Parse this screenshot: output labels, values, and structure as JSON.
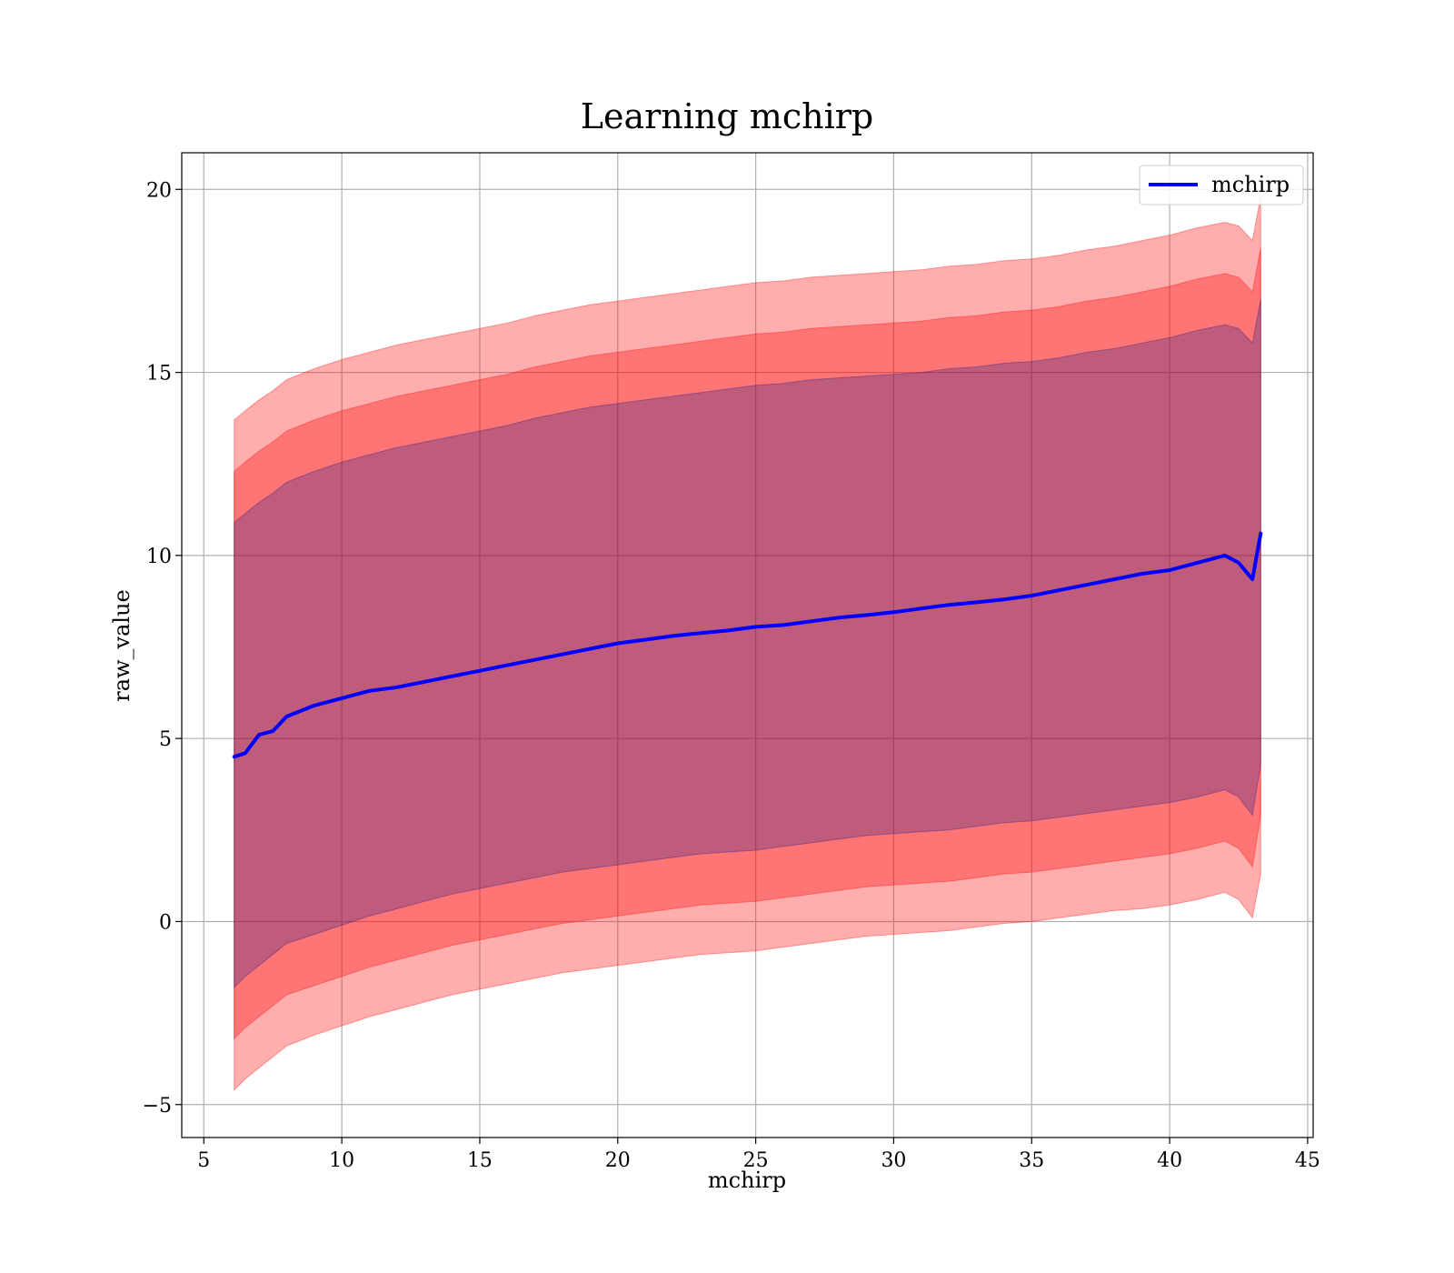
{
  "chart_data": {
    "type": "line",
    "title": "Learning mchirp",
    "xlabel": "mchirp",
    "ylabel": "raw_value",
    "xlim": [
      4.2,
      45.2
    ],
    "ylim": [
      -5.9,
      21
    ],
    "xticks": [
      5,
      10,
      15,
      20,
      25,
      30,
      35,
      40,
      45
    ],
    "yticks": [
      -5,
      0,
      5,
      10,
      15,
      20
    ],
    "ytick_labels": [
      "−5",
      "0",
      "5",
      "10",
      "15",
      "20"
    ],
    "grid": true,
    "legend_position": "top-right",
    "x": [
      6.1,
      6.5,
      7.0,
      7.5,
      8.0,
      9.0,
      10.0,
      11.0,
      12.0,
      13.0,
      14.0,
      15.0,
      16.0,
      17.0,
      18.0,
      19.0,
      20.0,
      21.0,
      22.0,
      23.0,
      24.0,
      25.0,
      26.0,
      27.0,
      28.0,
      29.0,
      30.0,
      31.0,
      32.0,
      33.0,
      34.0,
      35.0,
      36.0,
      37.0,
      38.0,
      39.0,
      40.0,
      41.0,
      42.0,
      42.5,
      43.0,
      43.3
    ],
    "series": [
      {
        "name": "mchirp",
        "color": "#0000ff",
        "values": [
          4.5,
          4.6,
          5.1,
          5.2,
          5.6,
          5.9,
          6.1,
          6.3,
          6.4,
          6.55,
          6.7,
          6.85,
          7.0,
          7.15,
          7.3,
          7.45,
          7.6,
          7.7,
          7.8,
          7.88,
          7.95,
          8.05,
          8.1,
          8.2,
          8.3,
          8.37,
          8.45,
          8.55,
          8.65,
          8.72,
          8.8,
          8.9,
          9.05,
          9.2,
          9.35,
          9.5,
          9.6,
          9.8,
          10.0,
          9.8,
          9.35,
          10.6
        ]
      }
    ],
    "bands": [
      {
        "name": "band_outer",
        "color": "#ff0000",
        "opacity": 0.32,
        "lower": [
          -4.6,
          -4.3,
          -4.0,
          -3.7,
          -3.4,
          -3.1,
          -2.85,
          -2.6,
          -2.4,
          -2.2,
          -2.0,
          -1.85,
          -1.7,
          -1.55,
          -1.4,
          -1.3,
          -1.2,
          -1.1,
          -1.0,
          -0.9,
          -0.85,
          -0.8,
          -0.7,
          -0.6,
          -0.5,
          -0.4,
          -0.35,
          -0.3,
          -0.25,
          -0.15,
          -0.05,
          0.0,
          0.1,
          0.2,
          0.3,
          0.35,
          0.45,
          0.6,
          0.8,
          0.6,
          0.1,
          1.3
        ],
        "upper": [
          13.7,
          13.95,
          14.25,
          14.5,
          14.8,
          15.1,
          15.35,
          15.55,
          15.75,
          15.9,
          16.05,
          16.2,
          16.35,
          16.55,
          16.7,
          16.85,
          16.95,
          17.05,
          17.15,
          17.25,
          17.35,
          17.45,
          17.5,
          17.6,
          17.65,
          17.7,
          17.75,
          17.8,
          17.9,
          17.95,
          18.05,
          18.1,
          18.2,
          18.35,
          18.45,
          18.6,
          18.75,
          18.95,
          19.1,
          19.0,
          18.6,
          19.8
        ]
      },
      {
        "name": "band_middle",
        "color": "#ff0000",
        "opacity": 0.32,
        "lower": [
          -3.2,
          -2.9,
          -2.6,
          -2.3,
          -2.0,
          -1.75,
          -1.5,
          -1.25,
          -1.05,
          -0.85,
          -0.65,
          -0.5,
          -0.35,
          -0.2,
          -0.05,
          0.05,
          0.15,
          0.25,
          0.35,
          0.45,
          0.5,
          0.55,
          0.65,
          0.75,
          0.85,
          0.95,
          1.0,
          1.05,
          1.1,
          1.2,
          1.3,
          1.35,
          1.45,
          1.55,
          1.65,
          1.75,
          1.85,
          2.0,
          2.2,
          2.0,
          1.5,
          2.9
        ],
        "upper": [
          12.3,
          12.55,
          12.85,
          13.1,
          13.4,
          13.7,
          13.95,
          14.15,
          14.35,
          14.5,
          14.65,
          14.8,
          14.95,
          15.15,
          15.3,
          15.45,
          15.55,
          15.65,
          15.75,
          15.85,
          15.95,
          16.05,
          16.1,
          16.2,
          16.25,
          16.3,
          16.35,
          16.4,
          16.5,
          16.55,
          16.65,
          16.7,
          16.8,
          16.95,
          17.05,
          17.2,
          17.35,
          17.55,
          17.7,
          17.6,
          17.2,
          18.4
        ]
      },
      {
        "name": "band_inner",
        "color": "#1a1a8c",
        "opacity": 0.28,
        "lower": [
          -1.8,
          -1.5,
          -1.2,
          -0.9,
          -0.6,
          -0.35,
          -0.1,
          0.15,
          0.35,
          0.55,
          0.75,
          0.9,
          1.05,
          1.2,
          1.35,
          1.45,
          1.55,
          1.65,
          1.75,
          1.85,
          1.9,
          1.95,
          2.05,
          2.15,
          2.25,
          2.35,
          2.4,
          2.45,
          2.5,
          2.6,
          2.7,
          2.75,
          2.85,
          2.95,
          3.05,
          3.15,
          3.25,
          3.4,
          3.6,
          3.4,
          2.9,
          4.3
        ],
        "upper": [
          10.9,
          11.15,
          11.45,
          11.7,
          12.0,
          12.3,
          12.55,
          12.75,
          12.95,
          13.1,
          13.25,
          13.4,
          13.55,
          13.75,
          13.9,
          14.05,
          14.15,
          14.25,
          14.35,
          14.45,
          14.55,
          14.65,
          14.7,
          14.8,
          14.85,
          14.9,
          14.95,
          15.0,
          15.1,
          15.15,
          15.25,
          15.3,
          15.4,
          15.55,
          15.65,
          15.8,
          15.95,
          16.15,
          16.3,
          16.2,
          15.8,
          17.0
        ]
      }
    ]
  }
}
